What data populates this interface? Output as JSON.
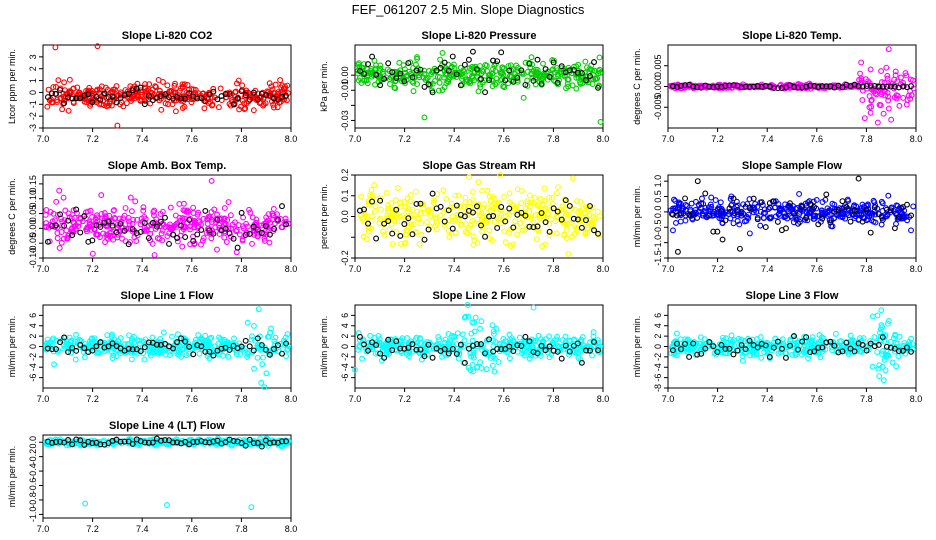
{
  "figure": {
    "title": "FEF_061207  2.5 Min. Slope Diagnostics"
  },
  "chart_data": [
    {
      "type": "scatter",
      "title": "Slope Li-820 CO2",
      "xlabel": "",
      "ylabel": "Ltcor ppm per min.",
      "xlim": [
        7.0,
        8.0
      ],
      "ylim": [
        -3,
        4
      ],
      "xticks": [
        7.0,
        7.2,
        7.4,
        7.6,
        7.8,
        8.0
      ],
      "yticks": [
        -3,
        -2,
        -1,
        0,
        1,
        2,
        3
      ],
      "ytick_labels": [
        "-3",
        "-2",
        "-1",
        "0",
        "1",
        "2",
        "3"
      ],
      "dense_color": "#ff0000",
      "dense_center": -0.3,
      "dense_spread": 0.5,
      "dense_outliers": [
        [
          7.05,
          3.8
        ],
        [
          7.22,
          3.9
        ],
        [
          7.3,
          -2.8
        ],
        [
          7.85,
          -1.5
        ]
      ],
      "sparse_color": "#000000",
      "sparse_center": -0.3,
      "sparse_spread": 0.3
    },
    {
      "type": "scatter",
      "title": "Slope Li-820 Pressure",
      "xlabel": "",
      "ylabel": "kPa per min.",
      "xlim": [
        7.0,
        8.0
      ],
      "ylim": [
        -0.035,
        0.02
      ],
      "xticks": [
        7.0,
        7.2,
        7.4,
        7.6,
        7.8,
        8.0
      ],
      "yticks": [
        -0.03,
        -0.02,
        -0.01,
        0.0
      ],
      "ytick_labels": [
        "-0.03",
        "",
        "-0.01",
        "0.00"
      ],
      "dense_color": "#00cc00",
      "dense_center": 0.0,
      "dense_spread": 0.004,
      "dense_outliers": [
        [
          7.28,
          -0.028
        ],
        [
          7.68,
          -0.015
        ],
        [
          7.99,
          -0.031
        ],
        [
          7.25,
          0.012
        ]
      ],
      "sparse_color": "#000000",
      "sparse_center": 0.002,
      "sparse_spread": 0.006
    },
    {
      "type": "scatter",
      "title": "Slope Li-820 Temp.",
      "xlabel": "",
      "ylabel": "degrees C per min.",
      "xlim": [
        7.0,
        8.0
      ],
      "ylim": [
        -0.01,
        0.01
      ],
      "xticks": [
        7.0,
        7.2,
        7.4,
        7.6,
        7.8,
        8.0
      ],
      "yticks": [
        -0.005,
        0.0,
        0.005
      ],
      "ytick_labels": [
        "-0.005",
        "0.000",
        "0.005"
      ],
      "dense_color": "#ff00ff",
      "dense_center": 0.0,
      "dense_spread": 0.0002,
      "dense_burst_from": 7.77,
      "dense_burst_spread": 0.003,
      "dense_outliers": [
        [
          7.89,
          0.009
        ],
        [
          7.9,
          -0.008
        ]
      ],
      "sparse_color": "#000000",
      "sparse_center": 0.0,
      "sparse_spread": 0.0002
    },
    {
      "type": "scatter",
      "title": "Slope Amb. Box Temp.",
      "xlabel": "",
      "ylabel": "degrees C per min.",
      "xlim": [
        7.0,
        8.0
      ],
      "ylim": [
        -0.1,
        0.18
      ],
      "xticks": [
        7.0,
        7.2,
        7.4,
        7.6,
        7.8,
        8.0
      ],
      "yticks": [
        -0.1,
        -0.05,
        0.0,
        0.05,
        0.1,
        0.15
      ],
      "ytick_labels": [
        "-0.10",
        "-0.05",
        "0.00",
        "0.05",
        "0.10",
        "0.15"
      ],
      "dense_color": "#ff00ff",
      "dense_center": 0.01,
      "dense_spread": 0.035,
      "dense_outliers": [
        [
          7.68,
          0.16
        ],
        [
          7.45,
          -0.09
        ]
      ],
      "sparse_color": "#000000",
      "sparse_center": 0.0,
      "sparse_spread": 0.03
    },
    {
      "type": "scatter",
      "title": "Slope Gas Stream RH",
      "xlabel": "",
      "ylabel": "percent per min.",
      "xlim": [
        7.0,
        8.0
      ],
      "ylim": [
        -0.2,
        0.2
      ],
      "xticks": [
        7.0,
        7.2,
        7.4,
        7.6,
        7.8,
        8.0
      ],
      "yticks": [
        -0.2,
        -0.1,
        0.0,
        0.1,
        0.2
      ],
      "ytick_labels": [
        "-0.2",
        "",
        "0.0",
        "0.1",
        "0.2"
      ],
      "dense_color": "#ffff00",
      "dense_center": 0.0,
      "dense_spread": 0.06,
      "dense_outliers": [
        [
          7.46,
          0.19
        ],
        [
          7.86,
          -0.18
        ]
      ],
      "sparse_color": "#000000",
      "sparse_center": 0.0,
      "sparse_spread": 0.05
    },
    {
      "type": "scatter",
      "title": "Slope Sample Flow",
      "xlabel": "",
      "ylabel": "ml/min per min.",
      "xlim": [
        7.0,
        8.0
      ],
      "ylim": [
        -1.5,
        1.2
      ],
      "xticks": [
        7.0,
        7.2,
        7.4,
        7.6,
        7.8,
        8.0
      ],
      "yticks": [
        -1.5,
        -1.0,
        -0.5,
        0.0,
        0.5,
        1.0
      ],
      "ytick_labels": [
        "-1.5",
        "-1.0",
        "-0.5",
        "0.0",
        "0.5",
        "1.0"
      ],
      "dense_color": "#0000ff",
      "dense_center": 0.0,
      "dense_spread": 0.18,
      "dense_outliers": [
        [
          7.02,
          -0.6
        ],
        [
          7.33,
          -0.7
        ],
        [
          7.98,
          -0.6
        ]
      ],
      "sparse_color": "#000000",
      "sparse_center": 0.0,
      "sparse_spread": 0.35,
      "sparse_outliers": [
        [
          7.12,
          1.0
        ],
        [
          7.04,
          -1.3
        ],
        [
          7.22,
          -0.9
        ],
        [
          7.29,
          -1.2
        ]
      ]
    },
    {
      "type": "scatter",
      "title": "Slope Line 1 Flow",
      "xlabel": "",
      "ylabel": "ml/min per min.",
      "xlim": [
        7.0,
        8.0
      ],
      "ylim": [
        -8,
        8
      ],
      "xticks": [
        7.0,
        7.2,
        7.4,
        7.6,
        7.8,
        8.0
      ],
      "yticks": [
        -6,
        -4,
        -2,
        0,
        2,
        4,
        6
      ],
      "ytick_labels": [
        "-6",
        "-4",
        "-2",
        "0",
        "2",
        "4",
        "6"
      ],
      "dense_color": "#00ffff",
      "dense_center": 0.0,
      "dense_spread": 1.0,
      "dense_burst_from": 7.8,
      "dense_burst_to": 7.92,
      "dense_burst_spread": 2.8,
      "dense_outliers": [
        [
          7.87,
          7.2
        ],
        [
          7.88,
          -7.0
        ]
      ],
      "sparse_color": "#000000",
      "sparse_center": 0.0,
      "sparse_spread": 0.8
    },
    {
      "type": "scatter",
      "title": "Slope Line 2 Flow",
      "xlabel": "",
      "ylabel": "ml/min per min.",
      "xlim": [
        7.0,
        8.0
      ],
      "ylim": [
        -8,
        8
      ],
      "xticks": [
        7.0,
        7.2,
        7.4,
        7.6,
        7.8,
        8.0
      ],
      "yticks": [
        -6,
        -4,
        -2,
        0,
        2,
        4,
        6
      ],
      "ytick_labels": [
        "-6",
        "-4",
        "-2",
        "0",
        "2",
        "4",
        "6"
      ],
      "dense_color": "#00ffff",
      "dense_center": 0.0,
      "dense_spread": 1.0,
      "dense_burst_from": 7.43,
      "dense_burst_to": 7.58,
      "dense_burst_spread": 3.0,
      "dense_outliers": [
        [
          7.72,
          7.5
        ],
        [
          7.0,
          -4.5
        ]
      ],
      "sparse_color": "#000000",
      "sparse_center": 0.0,
      "sparse_spread": 1.0
    },
    {
      "type": "scatter",
      "title": "Slope Line 3 Flow",
      "xlabel": "",
      "ylabel": "ml/min per min.",
      "xlim": [
        7.0,
        8.0
      ],
      "ylim": [
        -8,
        8
      ],
      "xticks": [
        7.0,
        7.2,
        7.4,
        7.6,
        7.8,
        8.0
      ],
      "yticks": [
        -8,
        -6,
        -4,
        -2,
        0,
        2,
        4,
        6
      ],
      "ytick_labels": [
        "-8",
        "-6",
        "-4",
        "-2",
        "0",
        "2",
        "4",
        "6"
      ],
      "dense_color": "#00ffff",
      "dense_center": 0.0,
      "dense_spread": 0.9,
      "dense_burst_from": 7.82,
      "dense_burst_to": 7.93,
      "dense_burst_spread": 2.5,
      "dense_outliers": [
        [
          7.86,
          7.0
        ],
        [
          7.87,
          -6.5
        ]
      ],
      "sparse_color": "#000000",
      "sparse_center": 0.0,
      "sparse_spread": 0.9
    },
    {
      "type": "scatter",
      "title": "Slope Line 4 (LT) Flow",
      "xlabel": "",
      "ylabel": "ml/min per min.",
      "xlim": [
        7.0,
        8.0
      ],
      "ylim": [
        -1.05,
        0.1
      ],
      "xticks": [
        7.0,
        7.2,
        7.4,
        7.6,
        7.8,
        8.0
      ],
      "yticks": [
        -1.0,
        -0.8,
        -0.6,
        -0.4,
        -0.2,
        0.0
      ],
      "ytick_labels": [
        "-1.0",
        "-0.8",
        "-0.6",
        "-0.4",
        "-0.2",
        "0.0"
      ],
      "dense_color": "#00ffff",
      "dense_center": 0.0,
      "dense_spread": 0.02,
      "dense_outliers": [
        [
          7.17,
          -0.85
        ],
        [
          7.5,
          -0.87
        ],
        [
          7.84,
          -0.9
        ]
      ],
      "sparse_color": "#000000",
      "sparse_center": 0.0,
      "sparse_spread": 0.02
    }
  ]
}
